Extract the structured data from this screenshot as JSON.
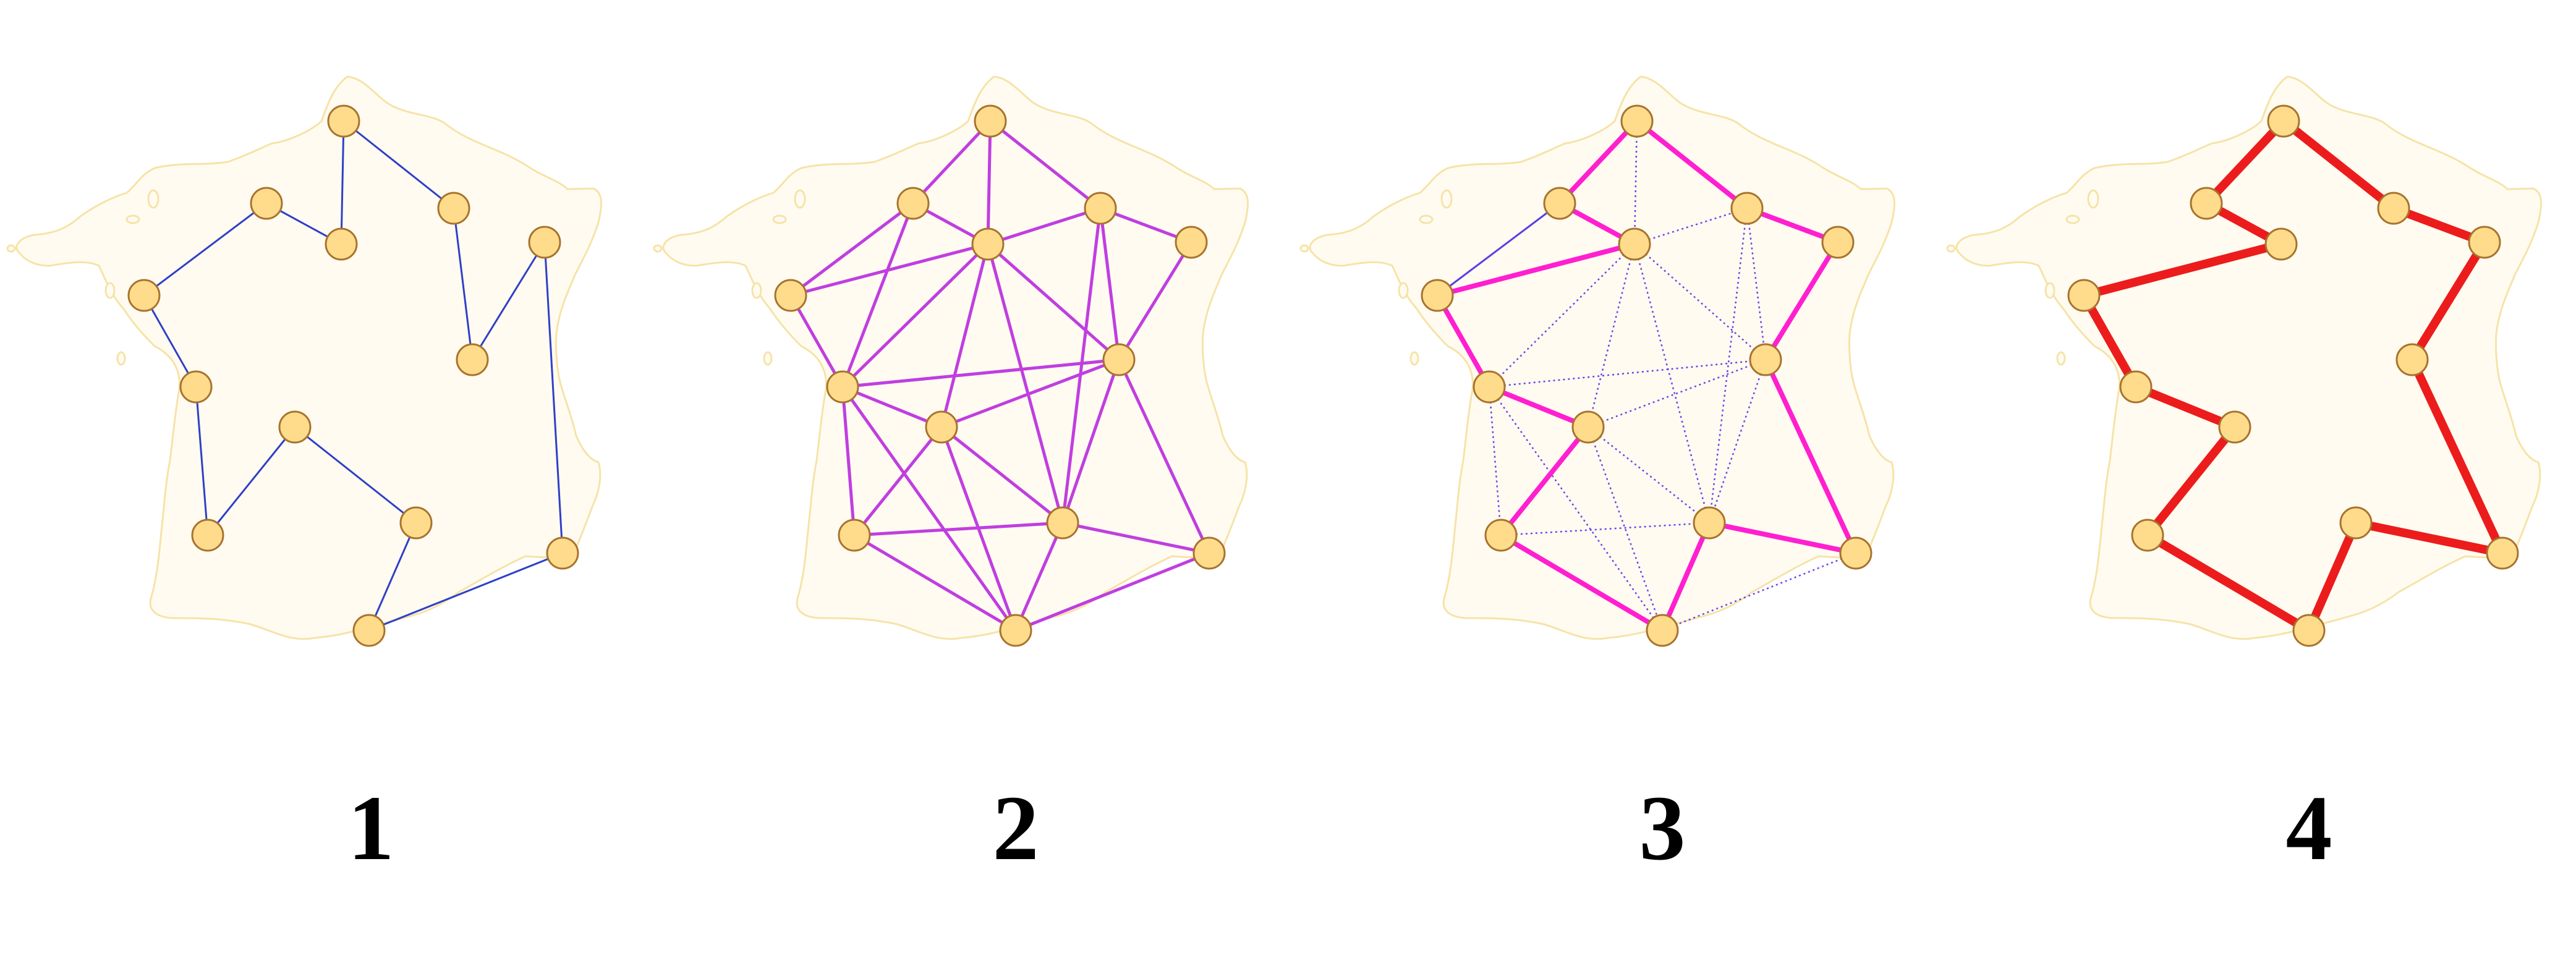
{
  "panels": [
    {
      "label": "1",
      "map": "france-outline",
      "style": "thin-path"
    },
    {
      "label": "2",
      "map": "france-outline",
      "style": "full-graph"
    },
    {
      "label": "3",
      "map": "france-outline",
      "style": "mixed-graph"
    },
    {
      "label": "4",
      "map": "france-outline",
      "style": "bold-tour"
    }
  ],
  "colors": {
    "land_fill": "#fffbf0",
    "land_stroke": "#f6e3a8",
    "node_fill": "#fedc8c",
    "node_stroke": "#a8732e",
    "panel1_edge": "#2f3fc8",
    "panel2_edge": "#c03ee0",
    "panel3_bold_edge": "#ff1fd0",
    "panel3_thin_edge": "#5a3de6",
    "panel3_dotted_edge": "#6a45ee",
    "panel4_edge": "#ec1c1c",
    "label_text": "#000000"
  }
}
